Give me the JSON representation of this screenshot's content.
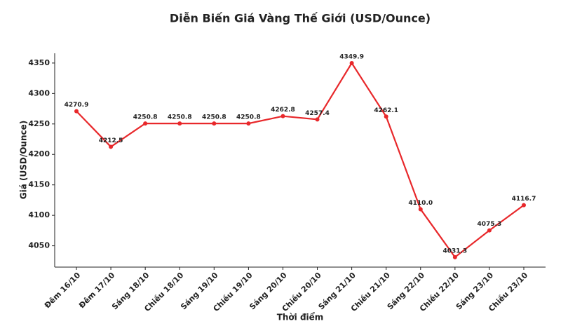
{
  "chart_data": {
    "type": "line",
    "title": "Diễn Biến Giá Vàng Thế Giới (USD/Ounce)",
    "x_label": "Thời điểm",
    "y_label": "Giá (USD/Ounce)",
    "categories": [
      "Đêm 16/10",
      "Đêm 17/10",
      "Sáng 18/10",
      "Chiều 18/10",
      "Sáng 19/10",
      "Chiều 19/10",
      "Sáng 20/10",
      "Chiều 20/10",
      "Sáng 21/10",
      "Chiều 21/10",
      "Sáng 22/10",
      "Chiều 22/10",
      "Sáng 23/10",
      "Chiều 23/10"
    ],
    "values": [
      4270.9,
      4212.5,
      4250.8,
      4250.8,
      4250.8,
      4250.8,
      4262.8,
      4257.4,
      4349.9,
      4262.1,
      4110.0,
      4031.3,
      4075.3,
      4116.7
    ],
    "value_labels": [
      "4270.9",
      "4212.5",
      "4250.8",
      "4250.8",
      "4250.8",
      "4250.8",
      "4262.8",
      "4257.4",
      "4349.9",
      "4262.1",
      "4110.0",
      "4031.3",
      "4075.3",
      "4116.7"
    ],
    "color": "#e8282b",
    "ylim": [
      4015,
      4366
    ],
    "yticks": [
      4050,
      4100,
      4150,
      4200,
      4250,
      4300,
      4350
    ],
    "grid": false
  }
}
